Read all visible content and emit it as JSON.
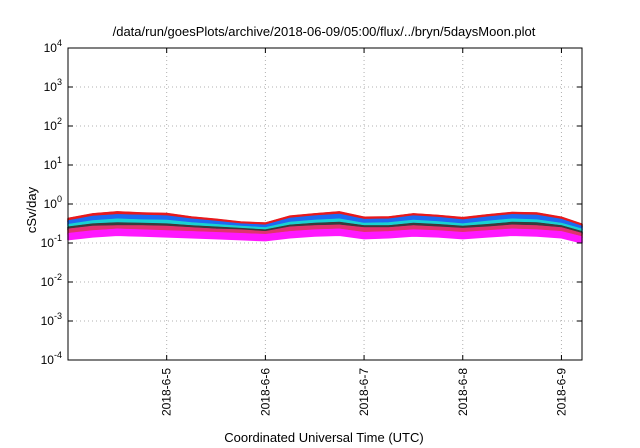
{
  "chart_data": {
    "type": "area",
    "title": "/data/run/goesPlots/archive/2018-06-09/05:00/flux/../bryn/5daysMoon.plot",
    "xlabel": "Coordinated Universal Time (UTC)",
    "ylabel": "cSv/day",
    "xscale": "time",
    "yscale": "log",
    "xlim": [
      "2018-06-04 00:00",
      "2018-06-09 05:00"
    ],
    "ylim": [
      0.0001,
      10000
    ],
    "grid": true,
    "y_ticks": [
      {
        "value": 0.0001,
        "base": "10",
        "exp": "-4"
      },
      {
        "value": 0.001,
        "base": "10",
        "exp": "-3"
      },
      {
        "value": 0.01,
        "base": "10",
        "exp": "-2"
      },
      {
        "value": 0.1,
        "base": "10",
        "exp": "-1"
      },
      {
        "value": 1,
        "base": "10",
        "exp": "0"
      },
      {
        "value": 10,
        "base": "10",
        "exp": "1"
      },
      {
        "value": 100,
        "base": "10",
        "exp": "2"
      },
      {
        "value": 1000,
        "base": "10",
        "exp": "3"
      },
      {
        "value": 10000,
        "base": "10",
        "exp": "4"
      }
    ],
    "x_ticks": [
      "2018-6-5",
      "2018-6-6",
      "2018-6-7",
      "2018-6-8",
      "2018-6-9"
    ],
    "x_tick_values": [
      "2018-06-05",
      "2018-06-06",
      "2018-06-07",
      "2018-06-08",
      "2018-06-09"
    ],
    "x": [
      "2018-06-04 00:00",
      "2018-06-04 06:00",
      "2018-06-04 12:00",
      "2018-06-04 18:00",
      "2018-06-05 00:00",
      "2018-06-05 06:00",
      "2018-06-05 12:00",
      "2018-06-05 18:00",
      "2018-06-06 00:00",
      "2018-06-06 06:00",
      "2018-06-06 12:00",
      "2018-06-06 18:00",
      "2018-06-07 00:00",
      "2018-06-07 06:00",
      "2018-06-07 12:00",
      "2018-06-07 18:00",
      "2018-06-08 00:00",
      "2018-06-08 06:00",
      "2018-06-08 12:00",
      "2018-06-08 18:00",
      "2018-06-09 00:00",
      "2018-06-09 05:00"
    ],
    "series": [
      {
        "color": "#e8191c",
        "values": [
          0.42,
          0.55,
          0.62,
          0.58,
          0.56,
          0.46,
          0.4,
          0.34,
          0.32,
          0.48,
          0.55,
          0.62,
          0.45,
          0.46,
          0.55,
          0.5,
          0.44,
          0.52,
          0.6,
          0.58,
          0.45,
          0.3
        ]
      },
      {
        "color": "#1d6af2",
        "values": [
          0.36,
          0.47,
          0.52,
          0.5,
          0.48,
          0.4,
          0.35,
          0.3,
          0.28,
          0.42,
          0.48,
          0.53,
          0.39,
          0.4,
          0.48,
          0.44,
          0.38,
          0.45,
          0.52,
          0.5,
          0.39,
          0.26
        ]
      },
      {
        "color": "#19d2d2",
        "values": [
          0.29,
          0.36,
          0.4,
          0.38,
          0.37,
          0.32,
          0.29,
          0.26,
          0.24,
          0.33,
          0.37,
          0.4,
          0.31,
          0.32,
          0.37,
          0.34,
          0.3,
          0.35,
          0.4,
          0.38,
          0.31,
          0.22
        ]
      },
      {
        "color": "#3a3a3a",
        "values": [
          0.25,
          0.3,
          0.32,
          0.31,
          0.3,
          0.27,
          0.25,
          0.23,
          0.21,
          0.28,
          0.31,
          0.33,
          0.27,
          0.27,
          0.31,
          0.29,
          0.26,
          0.29,
          0.33,
          0.32,
          0.27,
          0.19
        ]
      },
      {
        "color": "#e0336e",
        "values": [
          0.22,
          0.26,
          0.27,
          0.27,
          0.26,
          0.24,
          0.22,
          0.21,
          0.19,
          0.25,
          0.27,
          0.28,
          0.24,
          0.24,
          0.27,
          0.25,
          0.23,
          0.25,
          0.28,
          0.27,
          0.24,
          0.17
        ]
      },
      {
        "color": "#ff18ff",
        "values": [
          0.17,
          0.2,
          0.22,
          0.21,
          0.2,
          0.19,
          0.18,
          0.17,
          0.16,
          0.19,
          0.21,
          0.22,
          0.18,
          0.19,
          0.21,
          0.2,
          0.18,
          0.2,
          0.22,
          0.21,
          0.19,
          0.14
        ]
      }
    ]
  }
}
